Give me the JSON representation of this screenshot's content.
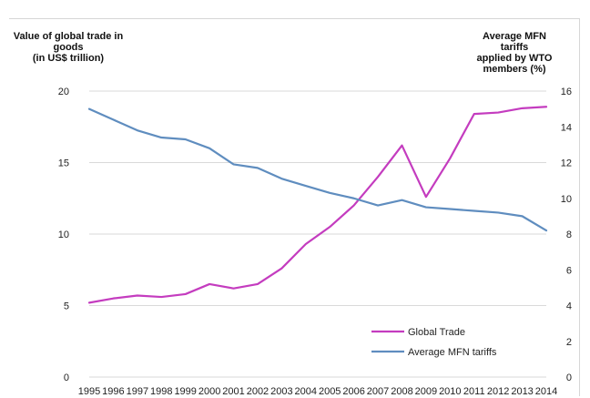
{
  "chart_data": {
    "type": "line",
    "ylabel_left": "Value of global trade in\ngoods\n(in US$ trillion)",
    "ylabel_right": "Average MFN tariffs\napplied by WTO\nmembers (%)",
    "categories": [
      "1995",
      "1996",
      "1997",
      "1998",
      "1999",
      "2000",
      "2001",
      "2002",
      "2003",
      "2004",
      "2005",
      "2006",
      "2007",
      "2008",
      "2009",
      "2010",
      "2011",
      "2012",
      "2013",
      "2014"
    ],
    "ylim_left": [
      0,
      20
    ],
    "yticks_left": [
      "0",
      "5",
      "10",
      "15",
      "20"
    ],
    "ylim_right": [
      0,
      16
    ],
    "yticks_right": [
      "0",
      "2",
      "4",
      "6",
      "8",
      "10",
      "12",
      "14",
      "16"
    ],
    "grid": true,
    "legend_position": "bottom-right",
    "series": [
      {
        "name": "Global Trade",
        "axis": "left",
        "color": "#c43cbf",
        "values": [
          5.2,
          5.5,
          5.7,
          5.6,
          5.8,
          6.5,
          6.2,
          6.5,
          7.6,
          9.3,
          10.5,
          12.0,
          14.0,
          16.2,
          12.6,
          15.3,
          18.4,
          18.5,
          18.8,
          18.9
        ]
      },
      {
        "name": "Average MFN tariffs",
        "axis": "right",
        "color": "#5f8dbf",
        "values": [
          15.0,
          14.4,
          13.8,
          13.4,
          13.3,
          12.8,
          11.9,
          11.7,
          11.1,
          10.7,
          10.3,
          10.0,
          9.6,
          9.9,
          9.5,
          9.4,
          9.3,
          9.2,
          9.0,
          8.2
        ]
      }
    ]
  }
}
